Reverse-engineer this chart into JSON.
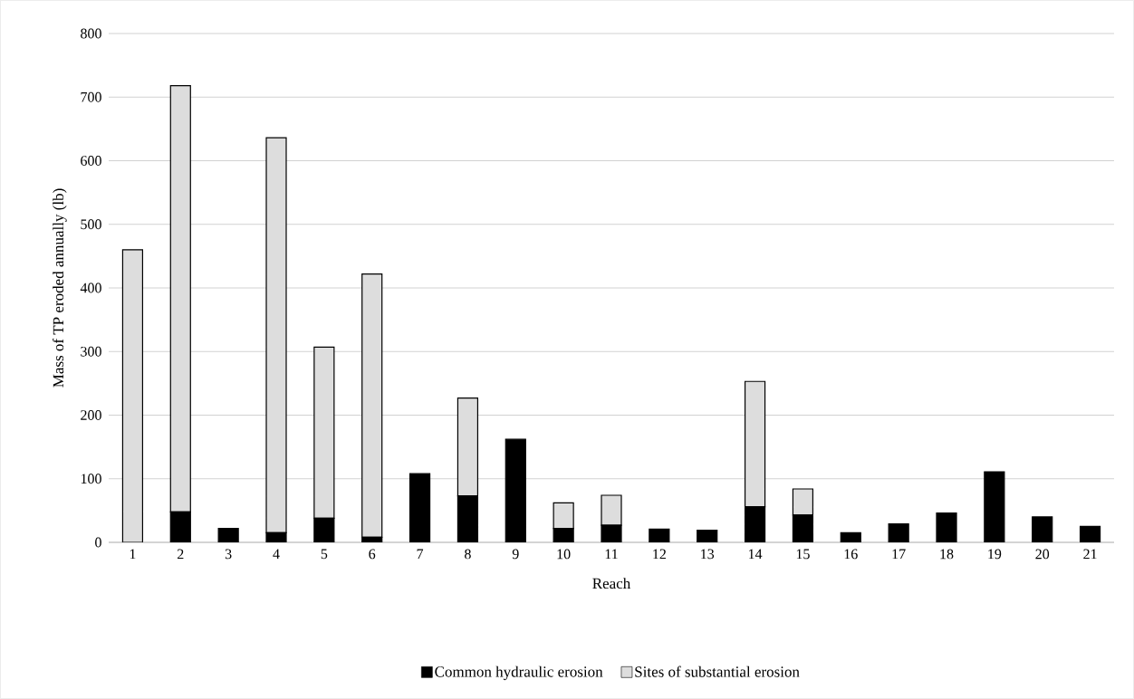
{
  "chart_data": {
    "type": "bar",
    "stacked": true,
    "xlabel": "Reach",
    "ylabel": "Mass of TP eroded annually (lb)",
    "categories": [
      "1",
      "2",
      "3",
      "4",
      "5",
      "6",
      "7",
      "8",
      "9",
      "10",
      "11",
      "12",
      "13",
      "14",
      "15",
      "16",
      "17",
      "18",
      "19",
      "20",
      "21"
    ],
    "series": [
      {
        "name": "Common hydraulic erosion",
        "color": "#000000",
        "values": [
          null,
          48,
          22,
          15,
          38,
          8,
          108,
          73,
          162,
          22,
          27,
          21,
          19,
          56,
          43,
          15,
          29,
          46,
          111,
          40,
          25
        ]
      },
      {
        "name": "Sites of substantial erosion",
        "color": "#dddddd",
        "values": [
          460,
          670,
          null,
          621,
          269,
          414,
          null,
          154,
          null,
          40,
          47,
          null,
          null,
          197,
          41,
          null,
          null,
          null,
          null,
          null,
          null
        ]
      }
    ],
    "ylim": [
      0,
      800
    ],
    "yticks": [
      0,
      100,
      200,
      300,
      400,
      500,
      600,
      700,
      800
    ],
    "grid": "y",
    "legend": "bottom"
  }
}
